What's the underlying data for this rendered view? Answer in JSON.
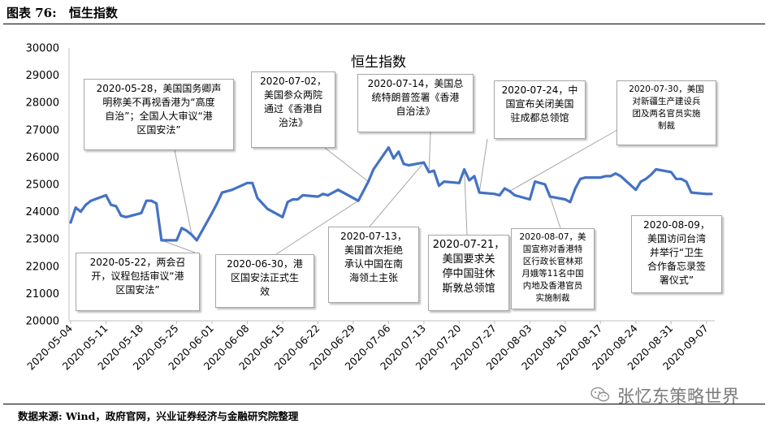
{
  "header": {
    "figure_label": "图表 76:",
    "figure_title": "恒生指数"
  },
  "source": {
    "text": "数据来源: Wind，政府官网，兴业证券经济与金融研究院整理"
  },
  "watermark": {
    "text": "张忆东策略世界",
    "icon": "wechat-icon"
  },
  "colors": {
    "line": "#4472C4",
    "axis": "#bfbfbf",
    "callout_border": "#a6a6a6"
  },
  "chart_data": {
    "type": "line",
    "title": "恒生指数",
    "xlabel": "",
    "ylabel": "",
    "ylim": [
      20000,
      30000
    ],
    "grid": false,
    "legend": "none",
    "y_ticks": [
      "20000",
      "21000",
      "22000",
      "23000",
      "24000",
      "25000",
      "26000",
      "27000",
      "28000",
      "29000",
      "30000"
    ],
    "x_ticks": [
      "2020-05-04",
      "2020-05-11",
      "2020-05-18",
      "2020-05-25",
      "2020-06-01",
      "2020-06-08",
      "2020-06-15",
      "2020-06-22",
      "2020-06-29",
      "2020-07-06",
      "2020-07-13",
      "2020-07-20",
      "2020-07-27",
      "2020-08-03",
      "2020-08-10",
      "2020-08-17",
      "2020-08-24",
      "2020-08-31",
      "2020-09-07"
    ],
    "series": [
      {
        "name": "",
        "x": [
          "2020-05-04",
          "2020-05-05",
          "2020-05-06",
          "2020-05-07",
          "2020-05-08",
          "2020-05-11",
          "2020-05-12",
          "2020-05-13",
          "2020-05-14",
          "2020-05-15",
          "2020-05-18",
          "2020-05-19",
          "2020-05-20",
          "2020-05-21",
          "2020-05-22",
          "2020-05-25",
          "2020-05-26",
          "2020-05-27",
          "2020-05-28",
          "2020-05-29",
          "2020-06-01",
          "2020-06-02",
          "2020-06-03",
          "2020-06-04",
          "2020-06-05",
          "2020-06-08",
          "2020-06-09",
          "2020-06-10",
          "2020-06-11",
          "2020-06-12",
          "2020-06-15",
          "2020-06-16",
          "2020-06-17",
          "2020-06-18",
          "2020-06-19",
          "2020-06-22",
          "2020-06-23",
          "2020-06-24",
          "2020-06-26",
          "2020-06-29",
          "2020-06-30",
          "2020-07-02",
          "2020-07-03",
          "2020-07-06",
          "2020-07-07",
          "2020-07-08",
          "2020-07-09",
          "2020-07-10",
          "2020-07-13",
          "2020-07-14",
          "2020-07-15",
          "2020-07-16",
          "2020-07-17",
          "2020-07-20",
          "2020-07-21",
          "2020-07-22",
          "2020-07-23",
          "2020-07-24",
          "2020-07-27",
          "2020-07-28",
          "2020-07-29",
          "2020-07-30",
          "2020-07-31",
          "2020-08-03",
          "2020-08-04",
          "2020-08-05",
          "2020-08-06",
          "2020-08-07",
          "2020-08-10",
          "2020-08-11",
          "2020-08-12",
          "2020-08-13",
          "2020-08-14",
          "2020-08-17",
          "2020-08-18",
          "2020-08-19",
          "2020-08-20",
          "2020-08-21",
          "2020-08-24",
          "2020-08-25",
          "2020-08-26",
          "2020-08-27",
          "2020-08-28",
          "2020-08-31",
          "2020-09-01",
          "2020-09-02",
          "2020-09-03",
          "2020-09-04",
          "2020-09-07",
          "2020-09-08"
        ],
        "values": [
          23600,
          24150,
          24000,
          24250,
          24400,
          24600,
          24250,
          24200,
          23850,
          23800,
          23950,
          24400,
          24400,
          24300,
          22950,
          22950,
          23400,
          23300,
          23150,
          22950,
          23950,
          24300,
          24700,
          24750,
          24800,
          25050,
          25050,
          24500,
          24300,
          24100,
          23800,
          24350,
          24450,
          24450,
          24600,
          24550,
          24650,
          24600,
          24800,
          24500,
          24400,
          25100,
          25550,
          26350,
          25950,
          26200,
          25750,
          25700,
          25800,
          25450,
          25500,
          24950,
          25100,
          25050,
          25550,
          25150,
          25300,
          24700,
          24650,
          24600,
          24850,
          24750,
          24600,
          24450,
          25100,
          25050,
          25000,
          24550,
          24450,
          24350,
          24850,
          25200,
          25250,
          25250,
          25300,
          25300,
          25400,
          25300,
          24800,
          25100,
          25200,
          25350,
          25550,
          25450,
          25200,
          25200,
          25100,
          24700,
          24650,
          24650
        ]
      }
    ],
    "annotations": [
      {
        "text": "2020-05-22，两会召\n开，议程包括审议“港\n区国安法”",
        "date": "2020-05-22"
      },
      {
        "text": "2020-05-28，美国国务卿声\n明称美不再视香港为“高度\n自治”；全国人大审议“港\n区国安法”",
        "date": "2020-05-28"
      },
      {
        "text": "2020-06-30，港\n区国安法正式生\n效",
        "date": "2020-06-30"
      },
      {
        "text": "2020-07-02，\n美国参众两院\n通过《香港自\n治法》",
        "date": "2020-07-02"
      },
      {
        "text": "2020-07-13，\n美国首次拒绝\n承认中国在南\n海领土主张",
        "date": "2020-07-13"
      },
      {
        "text": "2020-07-14，美国总\n统特朗普签署《香港\n自治法》",
        "date": "2020-07-14"
      },
      {
        "text": "2020-07-21，\n美国要求关\n停中国驻休\n斯敦总领馆",
        "date": "2020-07-21"
      },
      {
        "text": "2020-07-24，中\n国宣布关闭美国\n驻成都总领馆",
        "date": "2020-07-24"
      },
      {
        "text": "2020-07-30，美国\n对新疆生产建设兵\n团及两名官员实施\n制裁",
        "date": "2020-07-30"
      },
      {
        "text": "2020-08-07，美\n国宣称对香港特\n区行政长官林郑\n月娥等11名中国\n内地及香港官员\n实施制裁",
        "date": "2020-08-07"
      },
      {
        "text": "2020-08-09，\n美国访问台湾\n并举行“卫生\n合作备忘录签\n署仪式”",
        "date": "2020-08-09"
      }
    ]
  }
}
